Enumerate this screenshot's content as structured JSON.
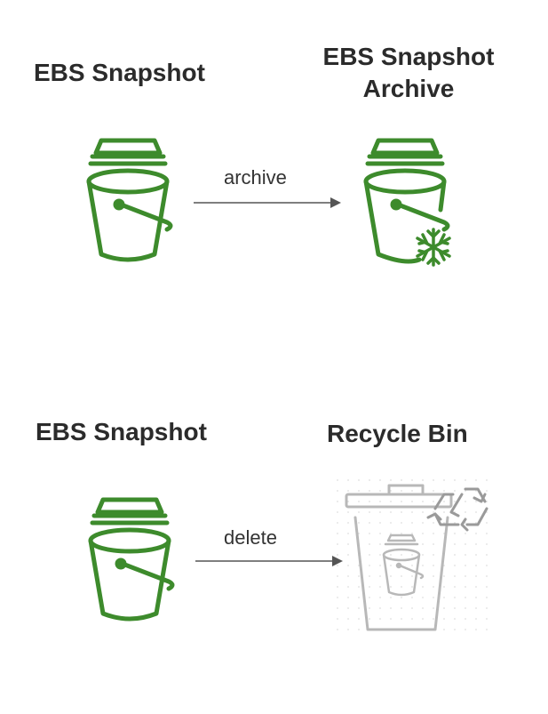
{
  "top": {
    "source_title": "EBS Snapshot",
    "target_title_line1": "EBS Snapshot",
    "target_title_line2": "Archive",
    "edge_label": "archive"
  },
  "bottom": {
    "source_title": "EBS Snapshot",
    "target_title": "Recycle Bin",
    "edge_label": "delete"
  },
  "icons": {
    "snapshot": "bucket-snapshot-icon",
    "archive": "bucket-snowflake-icon",
    "recycle_bin": "recycle-bin-icon"
  },
  "colors": {
    "bucket_green": "#3d8b2c",
    "recycle_gray": "#b8b8b8",
    "arrow": "#555555",
    "text": "#2b2b2b"
  }
}
